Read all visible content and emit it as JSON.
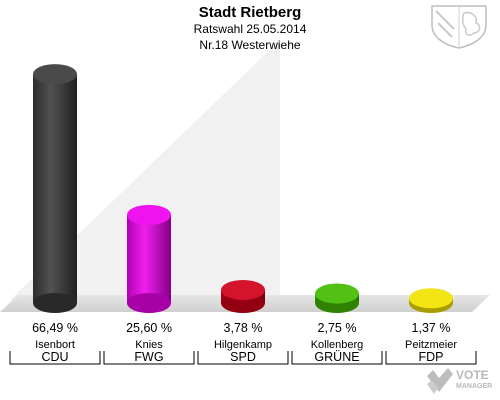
{
  "header": {
    "title": "Stadt Rietberg",
    "subtitle": "Ratswahl 25.05.2014",
    "district": "Nr.18 Westerwiehe"
  },
  "branding": {
    "logo_text": "VOTE",
    "logo_subtext": "MANAGER",
    "crest": "coat-of-arms-icon"
  },
  "chart_data": {
    "type": "bar",
    "bar_style": "3d-cylinder",
    "categories": [
      "Isenbort",
      "Knies",
      "Hilgenkamp",
      "Kollenberg",
      "Peitzmeier"
    ],
    "parties": [
      "CDU",
      "FWG",
      "SPD",
      "GRÜNE",
      "FDP"
    ],
    "values": [
      66.49,
      25.6,
      3.78,
      2.75,
      1.37
    ],
    "value_labels": [
      "66,49 %",
      "25,60 %",
      "3,78 %",
      "2,75 %",
      "1,37 %"
    ],
    "colors": [
      "#3a3a3a",
      "#ee00ee",
      "#d0001a",
      "#44bb00",
      "#f2e200"
    ],
    "ylim": [
      0,
      70
    ],
    "grid": false,
    "legend": "none"
  }
}
